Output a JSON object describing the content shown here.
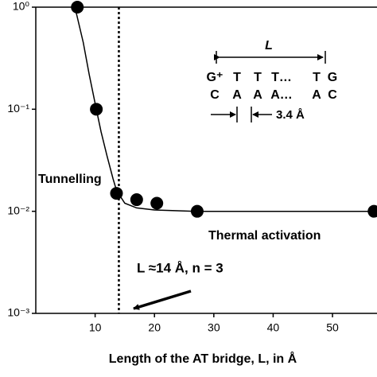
{
  "chart_data": {
    "type": "scatter",
    "x_label": "Length of the AT bridge, L, in Å",
    "xlim": [
      0,
      57.5
    ],
    "xticks": [
      10,
      20,
      30,
      40,
      50
    ],
    "ylim": [
      0.001,
      1
    ],
    "log_y": true,
    "yticks": [
      {
        "value": 1,
        "label": "10⁰"
      },
      {
        "value": 0.1,
        "label": "10⁻¹"
      },
      {
        "value": 0.01,
        "label": "10⁻²"
      },
      {
        "value": 0.001,
        "label": "10⁻³"
      }
    ],
    "series": [
      {
        "color": "#000000",
        "x": [
          7,
          10.2,
          13.6,
          17,
          20.4,
          27.2,
          57
        ],
        "values": [
          1.0,
          0.1,
          0.015,
          0.013,
          0.012,
          0.01,
          0.01
        ]
      }
    ],
    "fit": {
      "color": "#000000",
      "x": [
        6.6,
        8,
        9,
        10.2,
        11,
        12,
        13,
        13.6,
        15,
        17,
        20,
        27,
        57.5
      ],
      "values": [
        1.0,
        0.45,
        0.22,
        0.1,
        0.06,
        0.035,
        0.021,
        0.016,
        0.012,
        0.0108,
        0.0103,
        0.01,
        0.01
      ]
    },
    "vline": 14,
    "annotations": {
      "tunnelling": "Tunnelling",
      "thermal": "Thermal activation",
      "threshold": "L ≈14 Å, n = 3"
    },
    "inset": {
      "length_label": "L",
      "row1": [
        "G⁺",
        "T",
        "T",
        "T…",
        "T",
        "G"
      ],
      "row2": [
        "C",
        "A",
        "A",
        "A…",
        "A",
        "C"
      ],
      "spacing_label": "3.4 Å"
    }
  }
}
